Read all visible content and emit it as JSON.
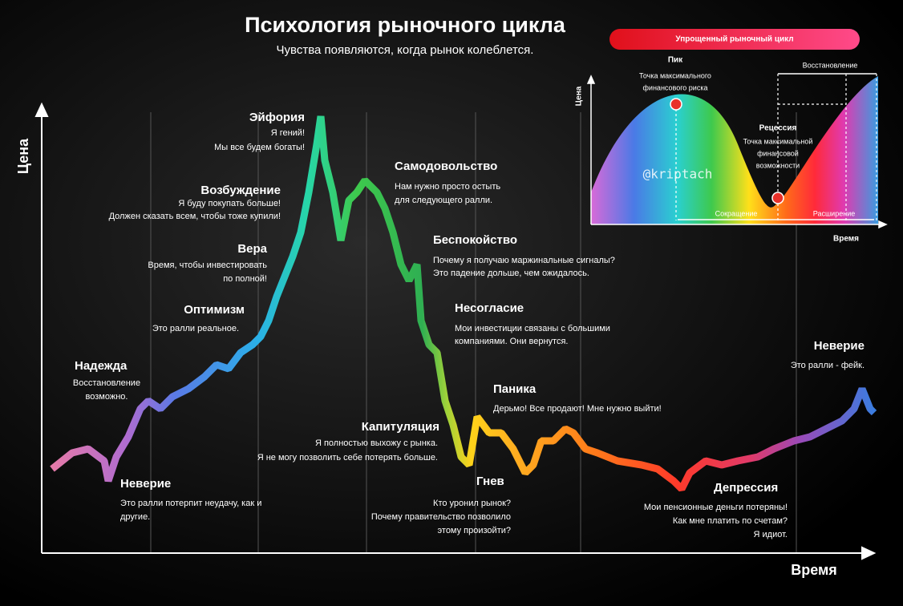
{
  "header": {
    "title": "Психология рыночного цикла",
    "subtitle": "Чувства появляются, когда рынок колеблется."
  },
  "axes": {
    "y_label": "Цена",
    "x_label": "Время"
  },
  "phases": [
    {
      "name": "Неверие",
      "lines": [
        "Это ралли потерпит неудачу, как и",
        "другие."
      ]
    },
    {
      "name": "Надежда",
      "lines": [
        "Восстановление",
        "возможно."
      ]
    },
    {
      "name": "Оптимизм",
      "lines": [
        "Это ралли реальное."
      ]
    },
    {
      "name": "Вера",
      "lines": [
        "Время, чтобы инвестировать",
        "по полной!"
      ]
    },
    {
      "name": "Возбуждение",
      "lines": [
        "Я буду покупать больше!",
        "Должен сказать всем, чтобы тоже купили!"
      ]
    },
    {
      "name": "Эйфория",
      "lines": [
        "Я гений!",
        "Мы все будем богаты!"
      ]
    },
    {
      "name": "Самодовольство",
      "lines": [
        "Нам нужно просто остыть",
        "для следующего ралли."
      ]
    },
    {
      "name": "Беспокойство",
      "lines": [
        "Почему я получаю маржинальные сигналы?",
        "Это падение дольше, чем ожидалось."
      ]
    },
    {
      "name": "Несогласие",
      "lines": [
        "Мои инвестиции связаны с большими",
        "компаниями. Они вернутся."
      ]
    },
    {
      "name": "Паника",
      "lines": [
        "Дерьмо! Все продают! Мне нужно выйти!"
      ]
    },
    {
      "name": "Капитуляция",
      "lines": [
        "Я полностью выхожу с рынка.",
        "Я не могу позволить себе потерять больше."
      ]
    },
    {
      "name": "Гнев",
      "lines": [
        "Кто уронил рынок?",
        "Почему правительство позволило",
        "этому произойти?"
      ]
    },
    {
      "name": "Депрессия",
      "lines": [
        "Мои пенсионные деньги потеряны!",
        "Как мне платить по счетам?",
        "Я идиот."
      ]
    },
    {
      "name": "Неверие",
      "lines": [
        "Это ралли - фейк."
      ]
    }
  ],
  "inset": {
    "title": "Упрощенный рыночный цикл",
    "peak": "Пик",
    "peak_text": [
      "Точка максимального",
      "финансового риска"
    ],
    "recovery": "Восстановление",
    "recession": "Рецессия",
    "recession_text": [
      "Точка максимальной",
      "финансовой",
      "возможности"
    ],
    "contraction": "Сокращение",
    "expansion": "Расширение",
    "y_label": "Цена",
    "x_label": "Время",
    "watermark": "@kriptach"
  }
}
